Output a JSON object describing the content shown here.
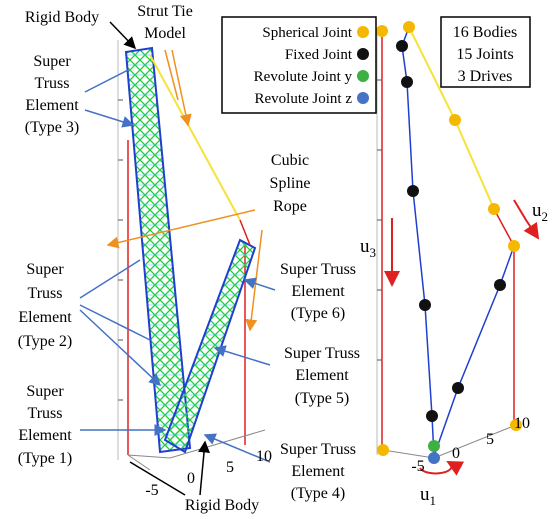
{
  "labels": {
    "rigid_body_top": "Rigid Body",
    "strut_tie": [
      "Strut Tie",
      "Model"
    ],
    "type3": [
      "Super",
      "Truss",
      "Element",
      "(Type 3)"
    ],
    "cubic_rope": [
      "Cubic",
      "Spline",
      "Rope"
    ],
    "type2": [
      "Super",
      "Truss",
      "Element",
      "(Type 2)"
    ],
    "type6": [
      "Super Truss",
      "Element",
      "(Type 6)"
    ],
    "type5": [
      "Super Truss",
      "Element",
      "(Type 5)"
    ],
    "type1": [
      "Super",
      "Truss",
      "Element",
      "(Type 1)"
    ],
    "type4": [
      "Super Truss",
      "Element",
      "(Type 4)"
    ],
    "rigid_body_bottom": "Rigid Body"
  },
  "left_axis_ticks": [
    -5,
    0,
    5,
    10
  ],
  "right_axis_ticks": [
    -5,
    0,
    5,
    10
  ],
  "legend": [
    "Spherical Joint",
    "Fixed Joint",
    "Revolute Joint y",
    "Revolute Joint z"
  ],
  "info": [
    "16 Bodies",
    "15 Joints",
    "3 Drives"
  ],
  "drives": [
    {
      "base": "u",
      "sub": "3"
    },
    {
      "base": "u",
      "sub": "2"
    },
    {
      "base": "u",
      "sub": "1"
    }
  ]
}
